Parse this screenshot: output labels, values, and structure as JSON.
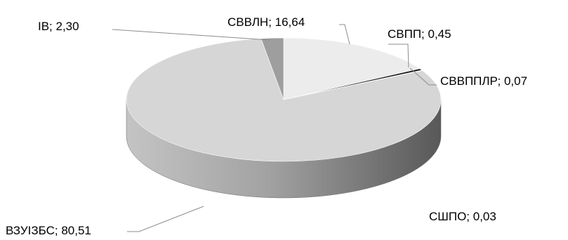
{
  "chart_data": {
    "type": "pie",
    "style": "3d",
    "slices": [
      {
        "label": "СВВЛН",
        "value": 16.64,
        "text": "СВВЛН; 16,64",
        "color": "#ececec"
      },
      {
        "label": "СВПП",
        "value": 0.45,
        "text": "СВПП; 0,45",
        "color": "#1a1a1a"
      },
      {
        "label": "СВВППЛР",
        "value": 0.07,
        "text": "СВВППЛР; 0,07",
        "color": "#707070"
      },
      {
        "label": "СШПО",
        "value": 0.03,
        "text": "СШПО; 0,03",
        "color": "#3a3a3a"
      },
      {
        "label": "ВЗУІЗБС",
        "value": 80.51,
        "text": "ВЗУІЗБС; 80,51",
        "color": "#d6d6d6"
      },
      {
        "label": "ІВ",
        "value": 2.3,
        "text": "ІВ; 2,30",
        "color": "#9e9e9e"
      }
    ]
  }
}
